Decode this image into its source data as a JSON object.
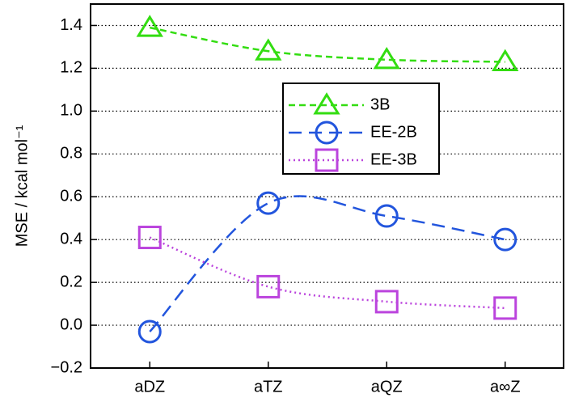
{
  "chart_data": {
    "type": "line",
    "y_label": "MSE / kcal mol⁻¹",
    "categories": [
      "aDZ",
      "aTZ",
      "aQZ",
      "a∞Z"
    ],
    "series": [
      {
        "name": "3B",
        "color": "#33dd11",
        "marker": "triangle",
        "dash": "8 5",
        "values": [
          1.39,
          1.28,
          1.24,
          1.23
        ]
      },
      {
        "name": "EE-2B",
        "color": "#2255dd",
        "marker": "circle",
        "dash": "16 9",
        "values": [
          -0.03,
          0.57,
          0.51,
          0.4
        ]
      },
      {
        "name": "EE-3B",
        "color": "#bb44dd",
        "marker": "square",
        "dash": "2 4",
        "values": [
          0.41,
          0.18,
          0.11,
          0.08
        ]
      }
    ],
    "ylim": [
      -0.2,
      1.5
    ],
    "yticks": [
      {
        "value": -0.2,
        "label": "−0.2"
      },
      {
        "value": 0,
        "label": "0.0"
      },
      0.2,
      0.4,
      0.6,
      0.8,
      {
        "value": 1,
        "label": "1.0"
      },
      1.2,
      1.4
    ],
    "grid": true,
    "legend": "upper center"
  }
}
